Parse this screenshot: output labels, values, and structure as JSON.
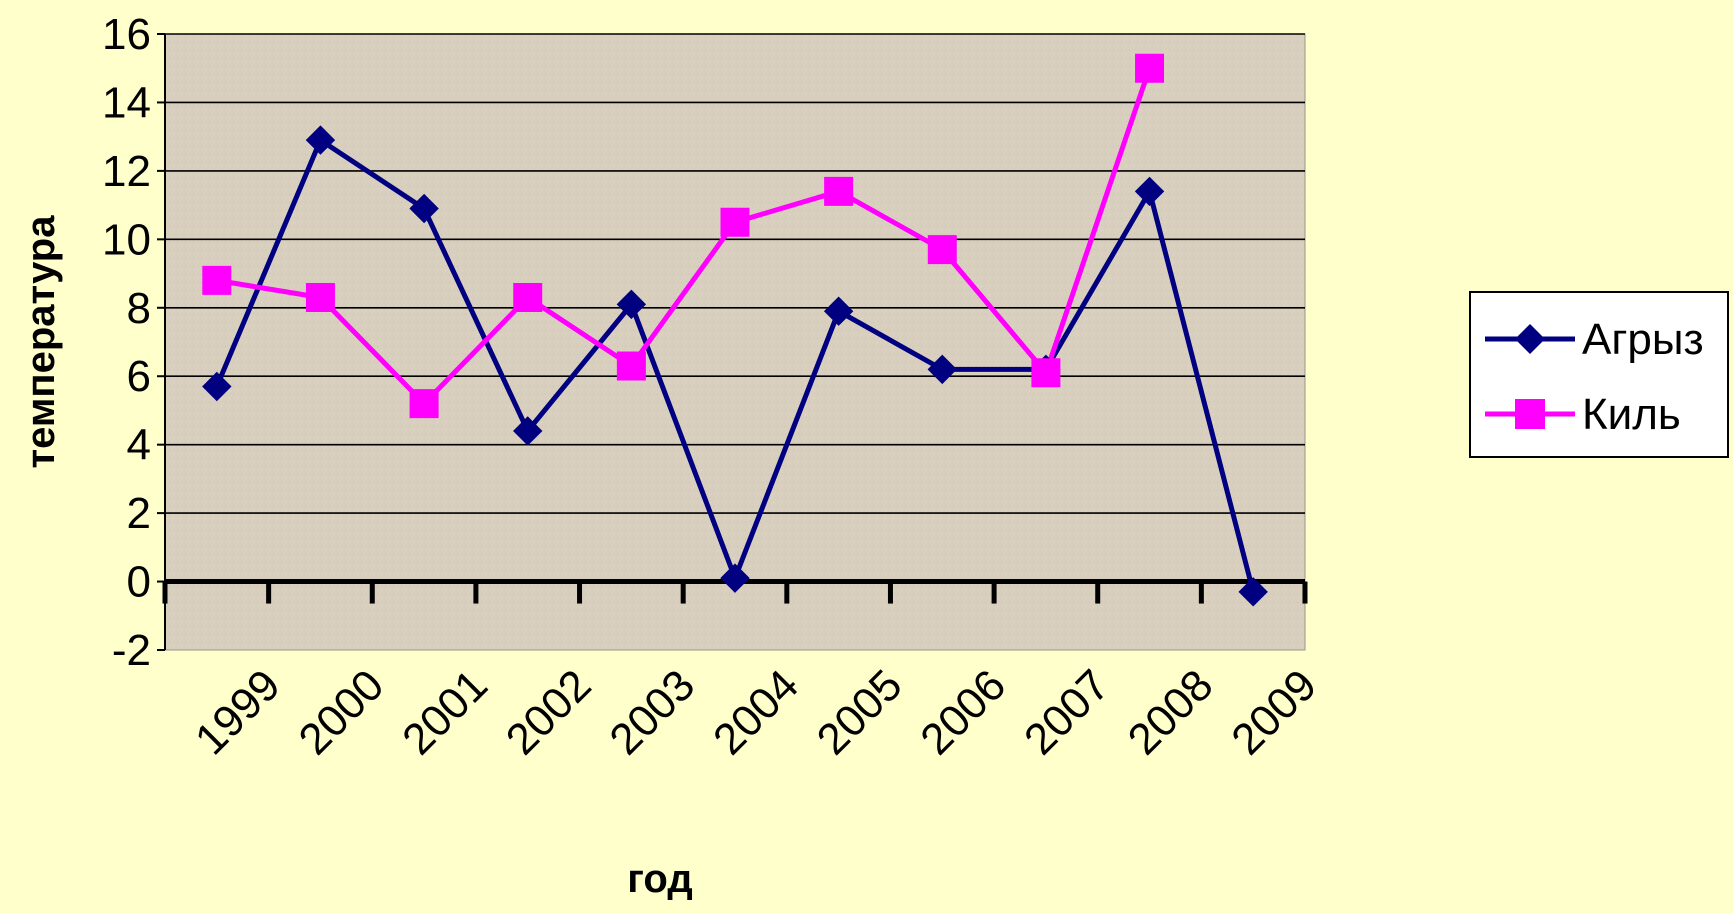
{
  "chart_data": {
    "type": "line",
    "title": "",
    "xlabel": "год",
    "ylabel": "температура",
    "categories": [
      "1999",
      "2000",
      "2001",
      "2002",
      "2003",
      "2004",
      "2005",
      "2006",
      "2007",
      "2008",
      "2009"
    ],
    "y_ticks": [
      "-2",
      "0",
      "2",
      "4",
      "6",
      "8",
      "10",
      "12",
      "14",
      "16"
    ],
    "ylim": [
      -2,
      16
    ],
    "grid": true,
    "legend_position": "right",
    "colors": {
      "page_background": "#FFFFCC",
      "plot_background": "#D9CFBE",
      "gridline": "#000000",
      "text": "#000000"
    },
    "series": [
      {
        "name": "Агрыз",
        "color": "#000080",
        "marker": "diamond",
        "values": [
          5.7,
          12.9,
          10.9,
          4.4,
          8.1,
          0.1,
          7.9,
          6.2,
          6.2,
          11.4,
          -0.3
        ]
      },
      {
        "name": "Киль",
        "color": "#FF00FF",
        "marker": "square",
        "values": [
          8.8,
          8.3,
          5.2,
          8.3,
          6.3,
          10.5,
          11.4,
          9.7,
          6.1,
          15.0,
          null
        ]
      }
    ]
  }
}
